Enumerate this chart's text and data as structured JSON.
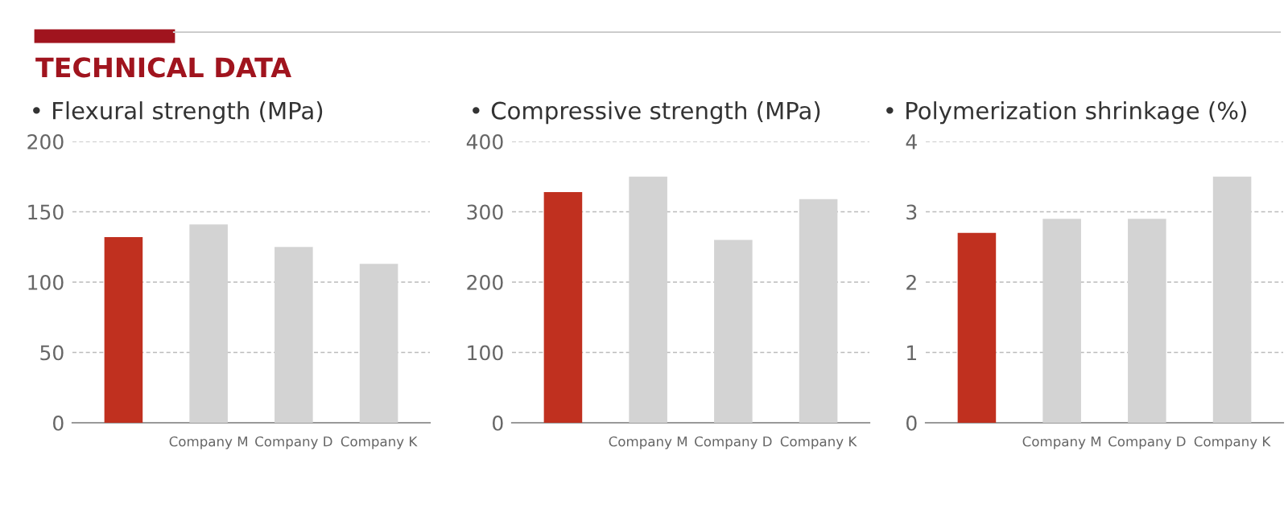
{
  "chart_data": [
    {
      "type": "bar",
      "title": "• Flexural strength (MPa)",
      "annotations": [
        "TECHNICAL DATA"
      ],
      "categories": [
        null,
        "Company M",
        "Company D",
        "Company K"
      ],
      "values": [
        132,
        141,
        125,
        113
      ],
      "colors": [
        "#c0301f",
        "#d3d3d3",
        "#d3d3d3",
        "#d3d3d3"
      ],
      "ylim": [
        0,
        200
      ],
      "yticks": [
        0,
        50,
        100,
        150,
        200
      ],
      "grid": "y",
      "legend": false
    },
    {
      "type": "bar",
      "title": "• Compressive strength (MPa)",
      "categories": [
        null,
        "Company M",
        "Company D",
        "Company K"
      ],
      "values": [
        328,
        350,
        260,
        318
      ],
      "colors": [
        "#c0301f",
        "#d3d3d3",
        "#d3d3d3",
        "#d3d3d3"
      ],
      "ylim": [
        0,
        400
      ],
      "yticks": [
        0,
        100,
        200,
        300,
        400
      ],
      "grid": "y",
      "legend": false
    },
    {
      "type": "bar",
      "title": "• Polymerization shrinkage (%)",
      "categories": [
        null,
        "Company M",
        "Company D",
        "Company K"
      ],
      "values": [
        2.7,
        2.9,
        2.9,
        3.5
      ],
      "colors": [
        "#c0301f",
        "#d3d3d3",
        "#d3d3d3",
        "#d3d3d3"
      ],
      "ylim": [
        0,
        4
      ],
      "yticks": [
        0,
        1,
        2,
        3,
        4
      ],
      "grid": "y",
      "legend": false
    }
  ]
}
